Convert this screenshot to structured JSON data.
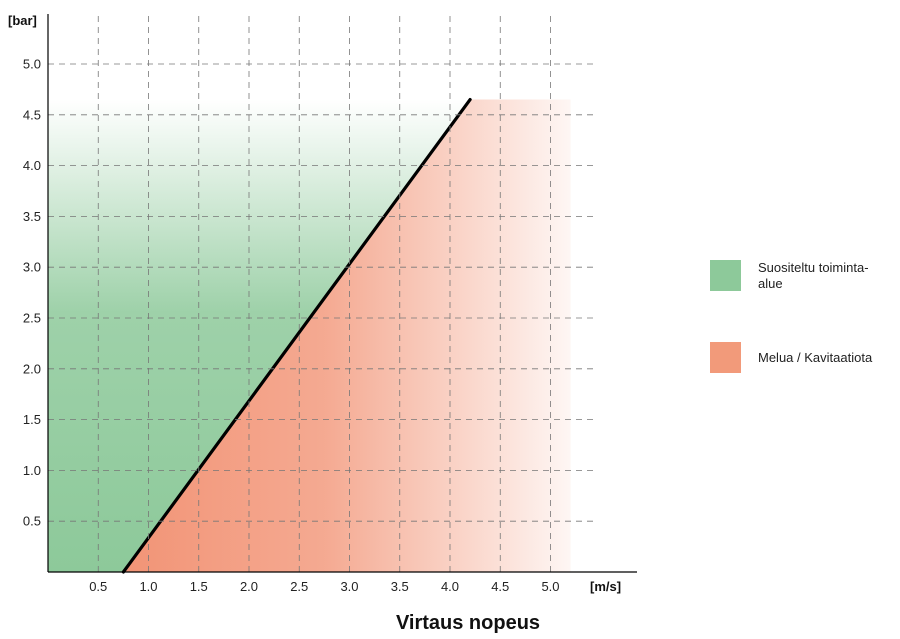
{
  "chart_data": {
    "type": "area",
    "xlabel": "Virtaus nopeus",
    "x_unit": "[m/s]",
    "y_unit": "[bar]",
    "x_ticks": [
      "0.5",
      "1.0",
      "1.5",
      "2.0",
      "2.5",
      "3.0",
      "3.5",
      "4.0",
      "4.5",
      "5.0"
    ],
    "y_ticks": [
      "0.5",
      "1.0",
      "1.5",
      "2.0",
      "2.5",
      "3.0",
      "3.5",
      "4.0",
      "4.5",
      "5.0"
    ],
    "xlim": [
      0,
      5.4
    ],
    "ylim": [
      0,
      5.2
    ],
    "grid": true,
    "legend_position": "right",
    "boundary_line": {
      "x": [
        0.75,
        4.2
      ],
      "y": [
        0.0,
        4.65
      ]
    },
    "region_top": 4.65,
    "region_right": 5.2,
    "series": [
      {
        "name": "Suositeltu toiminta-alue",
        "color": "#8dc99a"
      },
      {
        "name": "Melua / Kavitaatiota",
        "color": "#f29a7a"
      }
    ]
  },
  "legend": {
    "green_label": "Suositeltu toiminta-alue",
    "orange_label": "Melua / Kavitaatiota"
  }
}
